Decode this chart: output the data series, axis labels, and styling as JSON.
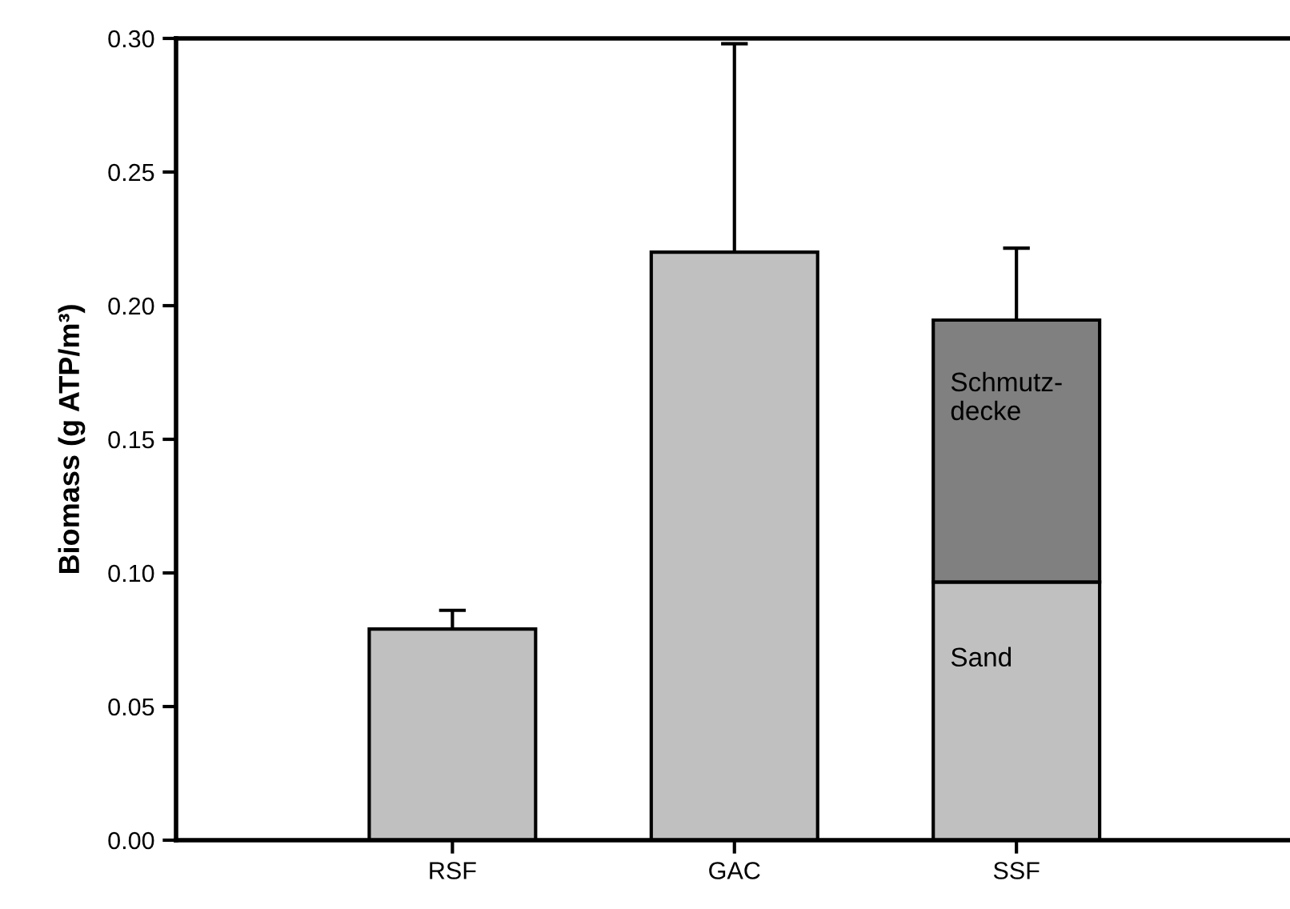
{
  "chart_data": {
    "type": "bar",
    "stacked": true,
    "ylabel": "Biomass (g ATP/m³)",
    "categories": [
      "RSF",
      "GAC",
      "SSF"
    ],
    "series": [
      {
        "name": "Sand",
        "color": "#c0c0c0",
        "values": [
          0.079,
          0.22,
          0.0966
        ],
        "errors": [
          [
            0.079,
            0.086
          ],
          [
            0.22,
            0.298
          ],
          null
        ]
      },
      {
        "name": "Schmutz-\ndecke",
        "color": "#808080",
        "values": [
          null,
          null,
          0.098
        ],
        "errors": [
          null,
          null,
          [
            0.1946,
            0.2215
          ]
        ]
      }
    ],
    "ylim": [
      0,
      0.3
    ],
    "yticks": [
      {
        "value": 0,
        "label": "0.00"
      },
      {
        "value": 0.05,
        "label": "0.05"
      },
      {
        "value": 0.1,
        "label": "0.10"
      },
      {
        "value": 0.15,
        "label": "0.15"
      },
      {
        "value": 0.2,
        "label": "0.20"
      },
      {
        "value": 0.25,
        "label": "0.25"
      },
      {
        "value": 0.3,
        "label": "0.30"
      }
    ],
    "grid": false,
    "legend": false
  }
}
